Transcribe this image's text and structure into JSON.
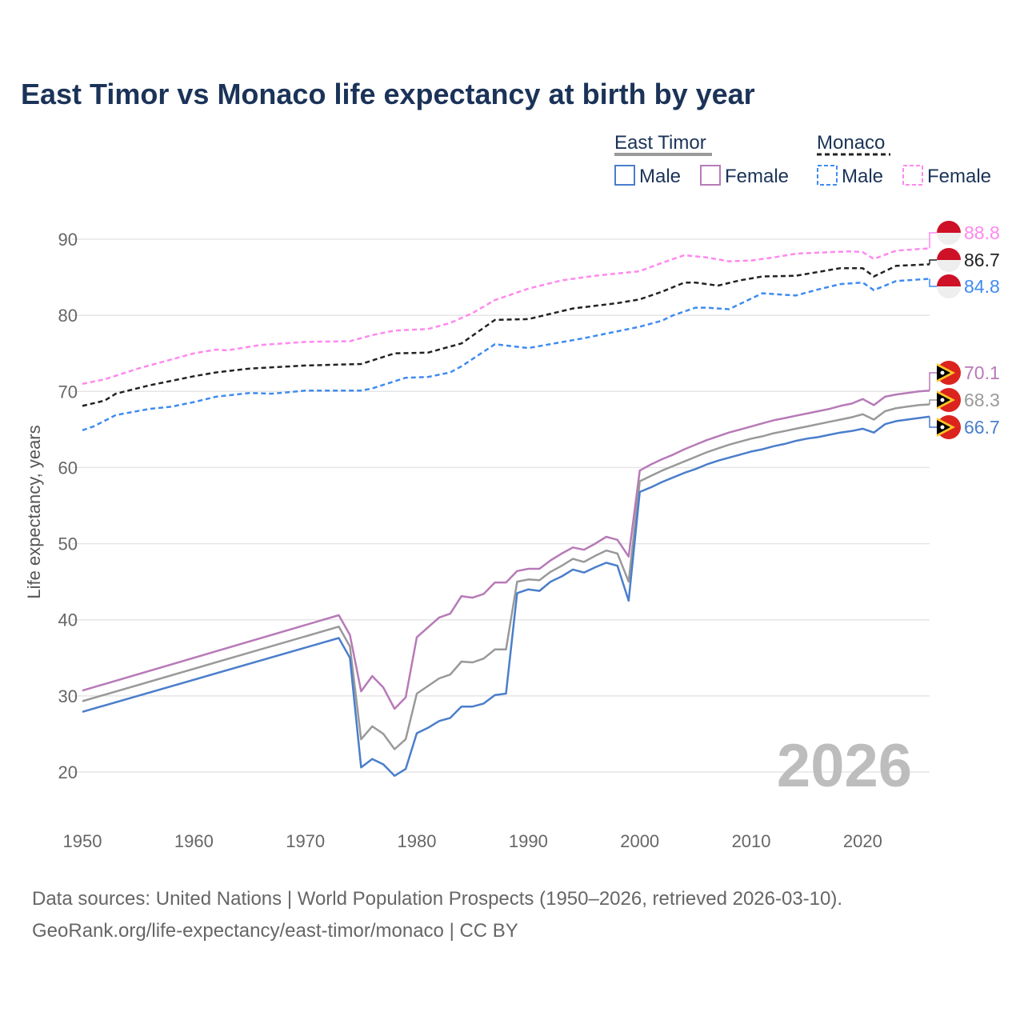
{
  "chart_data": {
    "type": "line",
    "title": "East Timor vs Monaco life expectancy at birth by year",
    "xlabel": "",
    "ylabel": "Life expectancy, years",
    "xlim": [
      1950,
      2026
    ],
    "ylim": [
      15,
      93
    ],
    "x_ticks": [
      1950,
      1960,
      1970,
      1980,
      1990,
      2000,
      2010,
      2020
    ],
    "y_ticks": [
      20,
      30,
      40,
      50,
      60,
      70,
      80,
      90
    ],
    "grid": true,
    "year_watermark": "2026",
    "legend": {
      "placement": "top-right",
      "groups": [
        {
          "title": "East Timor",
          "items": [
            "Male",
            "Female"
          ]
        },
        {
          "title": "Monaco",
          "items": [
            "Male",
            "Female"
          ]
        }
      ]
    },
    "series": [
      {
        "name": "Monaco Female",
        "country": "Monaco",
        "color": "#ff88ee",
        "dashed": true,
        "end_label": "88.8",
        "points": [
          [
            1950,
            71.0
          ],
          [
            1952,
            71.6
          ],
          [
            1955,
            73.0
          ],
          [
            1957,
            73.8
          ],
          [
            1960,
            75.0
          ],
          [
            1962,
            75.5
          ],
          [
            1963,
            75.4
          ],
          [
            1966,
            76.1
          ],
          [
            1970,
            76.5
          ],
          [
            1974,
            76.6
          ],
          [
            1976,
            77.4
          ],
          [
            1978,
            78.0
          ],
          [
            1981,
            78.2
          ],
          [
            1983,
            79.0
          ],
          [
            1985,
            80.3
          ],
          [
            1987,
            82.0
          ],
          [
            1990,
            83.5
          ],
          [
            1993,
            84.6
          ],
          [
            1996,
            85.2
          ],
          [
            2000,
            85.8
          ],
          [
            2002,
            86.9
          ],
          [
            2004,
            87.9
          ],
          [
            2006,
            87.6
          ],
          [
            2008,
            87.1
          ],
          [
            2010,
            87.2
          ],
          [
            2012,
            87.6
          ],
          [
            2014,
            88.1
          ],
          [
            2017,
            88.3
          ],
          [
            2019,
            88.4
          ],
          [
            2020,
            88.3
          ],
          [
            2021,
            87.4
          ],
          [
            2023,
            88.5
          ],
          [
            2026,
            88.8
          ]
        ]
      },
      {
        "name": "Monaco Total",
        "country": "Monaco",
        "color": "#222222",
        "dashed": true,
        "end_label": "86.7",
        "points": [
          [
            1950,
            68.1
          ],
          [
            1952,
            68.8
          ],
          [
            1953,
            69.7
          ],
          [
            1956,
            70.8
          ],
          [
            1960,
            72.0
          ],
          [
            1962,
            72.5
          ],
          [
            1965,
            73.0
          ],
          [
            1970,
            73.4
          ],
          [
            1975,
            73.6
          ],
          [
            1978,
            75.0
          ],
          [
            1981,
            75.1
          ],
          [
            1984,
            76.3
          ],
          [
            1987,
            79.4
          ],
          [
            1990,
            79.5
          ],
          [
            1994,
            80.9
          ],
          [
            1998,
            81.6
          ],
          [
            2000,
            82.1
          ],
          [
            2002,
            83.1
          ],
          [
            2004,
            84.3
          ],
          [
            2005,
            84.3
          ],
          [
            2007,
            83.9
          ],
          [
            2009,
            84.6
          ],
          [
            2011,
            85.1
          ],
          [
            2014,
            85.2
          ],
          [
            2018,
            86.2
          ],
          [
            2020,
            86.2
          ],
          [
            2021,
            85.1
          ],
          [
            2023,
            86.5
          ],
          [
            2026,
            86.7
          ]
        ]
      },
      {
        "name": "Monaco Male",
        "country": "Monaco",
        "color": "#3f8bf0",
        "dashed": true,
        "end_label": "84.8",
        "points": [
          [
            1950,
            64.9
          ],
          [
            1951,
            65.4
          ],
          [
            1953,
            66.9
          ],
          [
            1956,
            67.7
          ],
          [
            1958,
            68.0
          ],
          [
            1960,
            68.6
          ],
          [
            1962,
            69.3
          ],
          [
            1965,
            69.8
          ],
          [
            1967,
            69.7
          ],
          [
            1970,
            70.1
          ],
          [
            1975,
            70.1
          ],
          [
            1976,
            70.4
          ],
          [
            1979,
            71.8
          ],
          [
            1981,
            71.9
          ],
          [
            1983,
            72.5
          ],
          [
            1984,
            73.3
          ],
          [
            1987,
            76.2
          ],
          [
            1990,
            75.7
          ],
          [
            1995,
            77.0
          ],
          [
            2000,
            78.5
          ],
          [
            2002,
            79.3
          ],
          [
            2003,
            80.0
          ],
          [
            2005,
            81.0
          ],
          [
            2006,
            81.0
          ],
          [
            2008,
            80.8
          ],
          [
            2011,
            82.9
          ],
          [
            2014,
            82.6
          ],
          [
            2016,
            83.4
          ],
          [
            2018,
            84.1
          ],
          [
            2020,
            84.3
          ],
          [
            2021,
            83.3
          ],
          [
            2023,
            84.5
          ],
          [
            2026,
            84.8
          ]
        ]
      },
      {
        "name": "East Timor Female",
        "country": "East Timor",
        "color": "#b77ab8",
        "dashed": false,
        "end_label": "70.1",
        "points": [
          [
            1950,
            30.7
          ],
          [
            1973,
            40.6
          ],
          [
            1974,
            38.0
          ],
          [
            1975,
            30.6
          ],
          [
            1976,
            32.6
          ],
          [
            1977,
            31.1
          ],
          [
            1978,
            28.3
          ],
          [
            1979,
            29.8
          ],
          [
            1980,
            37.7
          ],
          [
            1981,
            39.0
          ],
          [
            1982,
            40.3
          ],
          [
            1983,
            40.8
          ],
          [
            1984,
            43.1
          ],
          [
            1985,
            42.9
          ],
          [
            1986,
            43.4
          ],
          [
            1987,
            44.9
          ],
          [
            1988,
            44.9
          ],
          [
            1989,
            46.4
          ],
          [
            1990,
            46.7
          ],
          [
            1991,
            46.7
          ],
          [
            1992,
            47.8
          ],
          [
            1993,
            48.7
          ],
          [
            1994,
            49.5
          ],
          [
            1995,
            49.2
          ],
          [
            1996,
            50.0
          ],
          [
            1997,
            50.9
          ],
          [
            1998,
            50.5
          ],
          [
            1999,
            48.3
          ],
          [
            2000,
            59.6
          ],
          [
            2001,
            60.4
          ],
          [
            2002,
            61.1
          ],
          [
            2003,
            61.7
          ],
          [
            2004,
            62.4
          ],
          [
            2005,
            63.0
          ],
          [
            2006,
            63.6
          ],
          [
            2007,
            64.1
          ],
          [
            2008,
            64.6
          ],
          [
            2009,
            65.0
          ],
          [
            2010,
            65.4
          ],
          [
            2011,
            65.8
          ],
          [
            2012,
            66.2
          ],
          [
            2013,
            66.5
          ],
          [
            2014,
            66.8
          ],
          [
            2015,
            67.1
          ],
          [
            2016,
            67.4
          ],
          [
            2017,
            67.7
          ],
          [
            2018,
            68.1
          ],
          [
            2019,
            68.4
          ],
          [
            2020,
            69.0
          ],
          [
            2021,
            68.2
          ],
          [
            2022,
            69.3
          ],
          [
            2023,
            69.6
          ],
          [
            2024,
            69.8
          ],
          [
            2025,
            70.0
          ],
          [
            2026,
            70.1
          ]
        ]
      },
      {
        "name": "East Timor Total",
        "country": "East Timor",
        "color": "#999999",
        "dashed": false,
        "end_label": "68.3",
        "points": [
          [
            1950,
            29.3
          ],
          [
            1973,
            39.1
          ],
          [
            1974,
            36.5
          ],
          [
            1975,
            24.3
          ],
          [
            1976,
            26.0
          ],
          [
            1977,
            25.0
          ],
          [
            1978,
            23.0
          ],
          [
            1979,
            24.3
          ],
          [
            1980,
            30.3
          ],
          [
            1981,
            31.3
          ],
          [
            1982,
            32.3
          ],
          [
            1983,
            32.8
          ],
          [
            1984,
            34.5
          ],
          [
            1985,
            34.4
          ],
          [
            1986,
            34.9
          ],
          [
            1987,
            36.1
          ],
          [
            1988,
            36.1
          ],
          [
            1989,
            45.0
          ],
          [
            1990,
            45.3
          ],
          [
            1991,
            45.2
          ],
          [
            1992,
            46.3
          ],
          [
            1993,
            47.1
          ],
          [
            1994,
            48.0
          ],
          [
            1995,
            47.6
          ],
          [
            1996,
            48.4
          ],
          [
            1997,
            49.1
          ],
          [
            1998,
            48.7
          ],
          [
            1999,
            45.0
          ],
          [
            2000,
            58.2
          ],
          [
            2001,
            58.9
          ],
          [
            2002,
            59.6
          ],
          [
            2003,
            60.2
          ],
          [
            2004,
            60.8
          ],
          [
            2005,
            61.4
          ],
          [
            2006,
            62.0
          ],
          [
            2007,
            62.5
          ],
          [
            2008,
            63.0
          ],
          [
            2009,
            63.4
          ],
          [
            2010,
            63.8
          ],
          [
            2011,
            64.1
          ],
          [
            2012,
            64.5
          ],
          [
            2013,
            64.8
          ],
          [
            2014,
            65.1
          ],
          [
            2015,
            65.4
          ],
          [
            2016,
            65.7
          ],
          [
            2017,
            66.0
          ],
          [
            2018,
            66.3
          ],
          [
            2019,
            66.6
          ],
          [
            2020,
            67.0
          ],
          [
            2021,
            66.3
          ],
          [
            2022,
            67.4
          ],
          [
            2023,
            67.8
          ],
          [
            2024,
            68.0
          ],
          [
            2025,
            68.2
          ],
          [
            2026,
            68.3
          ]
        ]
      },
      {
        "name": "East Timor Male",
        "country": "East Timor",
        "color": "#4a7ecb",
        "dashed": false,
        "end_label": "66.7",
        "points": [
          [
            1950,
            27.9
          ],
          [
            1973,
            37.6
          ],
          [
            1974,
            35.0
          ],
          [
            1975,
            20.6
          ],
          [
            1976,
            21.7
          ],
          [
            1977,
            21.0
          ],
          [
            1978,
            19.5
          ],
          [
            1979,
            20.4
          ],
          [
            1980,
            25.1
          ],
          [
            1981,
            25.8
          ],
          [
            1982,
            26.7
          ],
          [
            1983,
            27.1
          ],
          [
            1984,
            28.6
          ],
          [
            1985,
            28.6
          ],
          [
            1986,
            29.0
          ],
          [
            1987,
            30.1
          ],
          [
            1988,
            30.3
          ],
          [
            1989,
            43.5
          ],
          [
            1990,
            44.0
          ],
          [
            1991,
            43.8
          ],
          [
            1992,
            45.0
          ],
          [
            1993,
            45.7
          ],
          [
            1994,
            46.6
          ],
          [
            1995,
            46.2
          ],
          [
            1996,
            46.9
          ],
          [
            1997,
            47.5
          ],
          [
            1998,
            47.1
          ],
          [
            1999,
            42.5
          ],
          [
            2000,
            56.8
          ],
          [
            2001,
            57.4
          ],
          [
            2002,
            58.1
          ],
          [
            2003,
            58.7
          ],
          [
            2004,
            59.3
          ],
          [
            2005,
            59.8
          ],
          [
            2006,
            60.4
          ],
          [
            2007,
            60.9
          ],
          [
            2008,
            61.3
          ],
          [
            2009,
            61.7
          ],
          [
            2010,
            62.1
          ],
          [
            2011,
            62.4
          ],
          [
            2012,
            62.8
          ],
          [
            2013,
            63.1
          ],
          [
            2014,
            63.5
          ],
          [
            2015,
            63.8
          ],
          [
            2016,
            64.0
          ],
          [
            2017,
            64.3
          ],
          [
            2018,
            64.6
          ],
          [
            2019,
            64.8
          ],
          [
            2020,
            65.1
          ],
          [
            2021,
            64.6
          ],
          [
            2022,
            65.7
          ],
          [
            2023,
            66.1
          ],
          [
            2024,
            66.3
          ],
          [
            2025,
            66.5
          ],
          [
            2026,
            66.7
          ]
        ]
      }
    ]
  },
  "footer": {
    "line1": "Data sources: United Nations | World Population Prospects (1950–2026, retrieved 2026-03-10).",
    "line2": "GeoRank.org/life-expectancy/east-timor/monaco | CC BY"
  }
}
